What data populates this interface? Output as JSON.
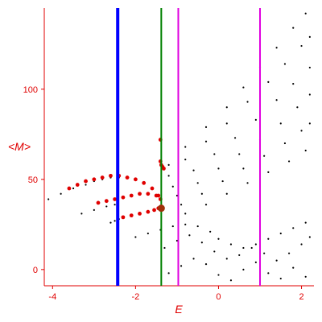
{
  "chart_data": {
    "type": "scatter",
    "title": "",
    "xlabel": "E",
    "ylabel": "<M>",
    "xlim": [
      -4.2,
      2.3
    ],
    "ylim": [
      -9,
      145
    ],
    "x_ticks": [
      -4,
      -2,
      0,
      2
    ],
    "x_tick_labels": [
      "-4",
      "-2",
      "0",
      "2"
    ],
    "y_ticks": [
      0,
      50,
      100
    ],
    "y_tick_labels": [
      "0",
      "50",
      "100"
    ],
    "grid": false,
    "legend": "none",
    "colors": {
      "axis_text": "#e00000",
      "black_points": "#000000",
      "red_points": "#e00000",
      "highlight_point": "#a0300a",
      "line_blue": "#0000ff",
      "line_green": "#008000",
      "line_magenta": "#e000e0"
    },
    "vertical_lines": [
      {
        "x": -2.43,
        "color": "#0000ff"
      },
      {
        "x": -1.38,
        "color": "#008000"
      },
      {
        "x": -0.97,
        "color": "#e000e0"
      },
      {
        "x": 1.0,
        "color": "#e000e0"
      }
    ],
    "highlight_point": {
      "x": -1.38,
      "y": 34
    },
    "bands": [
      {
        "name": "",
        "color": "#000000",
        "x": [
          -4.1,
          -3.8,
          -3.5,
          -3.2,
          -3.0,
          -2.8,
          -2.6,
          -2.4,
          -2.2
        ],
        "y": [
          39,
          42,
          45,
          47,
          49,
          50,
          51,
          51,
          51
        ]
      },
      {
        "name": "",
        "color": "#e00000",
        "x": [
          -3.6,
          -3.4,
          -3.2,
          -3.0,
          -2.8,
          -2.6,
          -2.4,
          -2.2,
          -2.0,
          -1.8,
          -1.6,
          -1.45
        ],
        "y": [
          45,
          47,
          49,
          50,
          51,
          52,
          52,
          51,
          50,
          48,
          45,
          41
        ]
      },
      {
        "name": "",
        "color": "#000000",
        "x": [
          -3.3,
          -3.0,
          -2.7,
          -2.5
        ],
        "y": [
          31,
          33,
          35,
          36
        ]
      },
      {
        "name": "",
        "color": "#e00000",
        "x": [
          -2.9,
          -2.7,
          -2.5,
          -2.3,
          -2.1,
          -1.9,
          -1.7,
          -1.5,
          -1.4
        ],
        "y": [
          37,
          38,
          39,
          40,
          41,
          42,
          42,
          41,
          39
        ]
      },
      {
        "name": "",
        "color": "#000000",
        "x": [
          -2.6,
          -2.5,
          -2.4
        ],
        "y": [
          26,
          27,
          28
        ]
      },
      {
        "name": "",
        "color": "#e00000",
        "x": [
          -2.3,
          -2.1,
          -1.9,
          -1.7,
          -1.55,
          -1.45
        ],
        "y": [
          29,
          30,
          31,
          32,
          33,
          34
        ]
      },
      {
        "name": "",
        "color": "#e00000",
        "x": [
          -1.4,
          -1.4,
          -1.38,
          -1.35,
          -1.32
        ],
        "y": [
          72,
          60,
          58,
          57,
          56
        ]
      },
      {
        "name": "",
        "color": "#000000",
        "x": [
          -1.2,
          -0.8,
          -0.3,
          0.2,
          0.6,
          1.0,
          1.4,
          1.8,
          2.1
        ],
        "y": [
          58,
          68,
          79,
          90,
          101,
          112,
          123,
          134,
          142
        ]
      },
      {
        "name": "",
        "color": "#000000",
        "x": [
          -1.2,
          -0.8,
          -0.3,
          0.2,
          0.7,
          1.2,
          1.6,
          2.0,
          2.2
        ],
        "y": [
          52,
          61,
          71,
          81,
          93,
          104,
          114,
          124,
          129
        ]
      },
      {
        "name": "",
        "color": "#000000",
        "x": [
          -1.1,
          -0.6,
          -0.1,
          0.4,
          0.9,
          1.4,
          1.8,
          2.2
        ],
        "y": [
          46,
          55,
          64,
          73,
          83,
          94,
          103,
          112
        ]
      },
      {
        "name": "",
        "color": "#000000",
        "x": [
          -1.0,
          -0.5,
          0.0,
          0.5,
          1.0,
          1.5,
          1.9,
          2.2
        ],
        "y": [
          41,
          48,
          56,
          64,
          72,
          81,
          90,
          97
        ]
      },
      {
        "name": "",
        "color": "#000000",
        "x": [
          -0.9,
          -0.4,
          0.1,
          0.6,
          1.1,
          1.6,
          2.0,
          2.2
        ],
        "y": [
          36,
          42,
          49,
          56,
          63,
          70,
          77,
          81
        ]
      },
      {
        "name": "",
        "color": "#000000",
        "x": [
          -0.8,
          -0.3,
          0.2,
          0.7,
          1.2,
          1.7,
          2.1
        ],
        "y": [
          31,
          36,
          42,
          48,
          54,
          60,
          66
        ]
      },
      {
        "name": "",
        "color": "#000000",
        "x": [
          -2.0,
          -1.7,
          -1.4,
          -1.1,
          -0.8,
          -0.5,
          -0.2,
          0.0,
          0.3,
          0.6,
          0.9,
          1.2,
          1.5,
          1.8,
          2.1
        ],
        "y": [
          18,
          20,
          22,
          24,
          25,
          24,
          21,
          17,
          14,
          12,
          14,
          17,
          20,
          23,
          26
        ]
      },
      {
        "name": "",
        "color": "#000000",
        "x": [
          -1.3,
          -1.0,
          -0.7,
          -0.4,
          -0.1,
          0.2,
          0.5,
          0.8,
          1.1,
          1.4,
          1.7,
          2.0,
          2.2
        ],
        "y": [
          12,
          16,
          19,
          15,
          10,
          6,
          8,
          12,
          9,
          5,
          9,
          14,
          18
        ]
      },
      {
        "name": "",
        "color": "#000000",
        "x": [
          -1.2,
          -0.9,
          -0.6,
          -0.3,
          0.0,
          0.3,
          0.6,
          0.9,
          1.2,
          1.5,
          1.8,
          2.1
        ],
        "y": [
          -2,
          2,
          6,
          3,
          -3,
          -6,
          0,
          4,
          -2,
          -5,
          1,
          -4
        ]
      }
    ]
  }
}
